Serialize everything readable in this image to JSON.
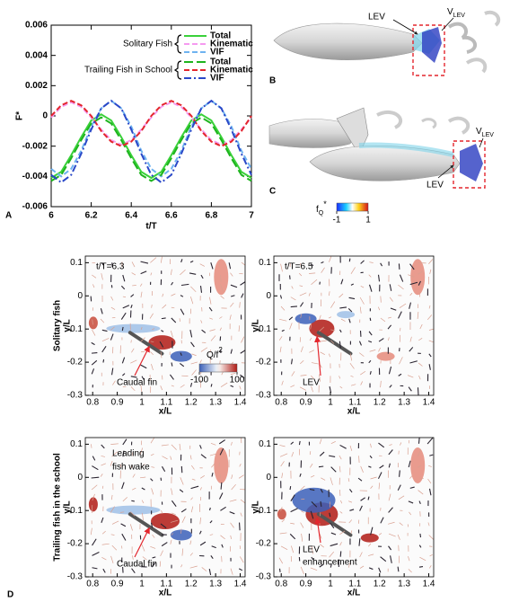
{
  "chart_data": {
    "type": "line",
    "xlabel": "t/T",
    "ylabel": "F*",
    "x": [
      6,
      6.05,
      6.1,
      6.15,
      6.2,
      6.25,
      6.3,
      6.35,
      6.4,
      6.45,
      6.5,
      6.55,
      6.6,
      6.65,
      6.7,
      6.75,
      6.8,
      6.85,
      6.9,
      6.95,
      7
    ],
    "xlim": [
      6,
      7
    ],
    "xticks": [
      6,
      6.2,
      6.4,
      6.6,
      6.8,
      7
    ],
    "ylim": [
      -0.006,
      0.006
    ],
    "yticks": [
      0.006,
      0.004,
      0.002,
      0,
      -0.002,
      -0.004,
      -0.006
    ],
    "legend_groups": [
      "Solitary Fish",
      "Trailing Fish in School"
    ],
    "series": [
      {
        "name": "Total",
        "color": "#3ad13a",
        "dash": "solid",
        "values": [
          -0.0041,
          -0.0037,
          -0.0026,
          -0.0014,
          -0.0003,
          0.0001,
          -0.0003,
          -0.0014,
          -0.0026,
          -0.0037,
          -0.0041,
          -0.0037,
          -0.0026,
          -0.0014,
          -0.0003,
          0.0001,
          -0.0003,
          -0.0014,
          -0.0026,
          -0.0037,
          -0.0041
        ]
      },
      {
        "name": "Kinematic",
        "color": "#f59af0",
        "dash": "dashed",
        "values": [
          -0.0001,
          0.0006,
          0.0009,
          0.0006,
          -0.0001,
          -0.0009,
          -0.0016,
          -0.0019,
          -0.0016,
          -0.0009,
          -0.0001,
          0.0006,
          0.0009,
          0.0006,
          -0.0001,
          -0.0009,
          -0.0016,
          -0.0019,
          -0.0016,
          -0.0009,
          -0.0001
        ]
      },
      {
        "name": "VIF",
        "color": "#6fb3f0",
        "dash": "dashed",
        "values": [
          -0.0035,
          -0.004,
          -0.0035,
          -0.0023,
          -0.0007,
          0.0005,
          0.001,
          0.0005,
          -0.0007,
          -0.0023,
          -0.0035,
          -0.004,
          -0.0035,
          -0.0023,
          -0.0007,
          0.0005,
          0.001,
          0.0005,
          -0.0007,
          -0.0023,
          -0.0035
        ]
      },
      {
        "name": "Total",
        "color": "#1eb41e",
        "dash": "longdash",
        "values": [
          -0.0043,
          -0.0039,
          -0.0028,
          -0.0016,
          -0.0005,
          -0.0001,
          -0.0005,
          -0.0016,
          -0.0028,
          -0.0039,
          -0.0043,
          -0.0039,
          -0.0028,
          -0.0016,
          -0.0005,
          -0.0001,
          -0.0005,
          -0.0016,
          -0.0028,
          -0.0039,
          -0.0043
        ]
      },
      {
        "name": "Kinematic",
        "color": "#e3262d",
        "dash": "dashed",
        "values": [
          0,
          0.0007,
          0.001,
          0.0007,
          0,
          -0.001,
          -0.0017,
          -0.002,
          -0.0017,
          -0.001,
          0,
          0.0007,
          0.001,
          0.0007,
          0,
          -0.001,
          -0.0017,
          -0.002,
          -0.0017,
          -0.001,
          0
        ]
      },
      {
        "name": "VIF",
        "color": "#2a48c8",
        "dash": "dashdot",
        "values": [
          -0.0039,
          -0.0044,
          -0.0039,
          -0.0025,
          -0.0009,
          0.0005,
          0.001,
          0.0005,
          -0.0009,
          -0.0025,
          -0.0039,
          -0.0044,
          -0.0039,
          -0.0025,
          -0.0009,
          0.0005,
          0.001,
          0.0005,
          -0.0009,
          -0.0025,
          -0.0039
        ]
      }
    ]
  },
  "panel_labels": [
    "A",
    "B",
    "C",
    "D"
  ],
  "vortex": {
    "lev": "LEV",
    "v": "V",
    "v_sub": "LEV"
  },
  "fq_colorbar": {
    "symbol": "f",
    "sub": "Q",
    "sup": "*",
    "ticks": [
      -1,
      1
    ]
  },
  "flow": {
    "xlabel": "x/L",
    "ylabel": "y/L",
    "xlim": [
      0.77,
      1.42
    ],
    "xticks": [
      0.8,
      0.9,
      1,
      1.1,
      1.2,
      1.3,
      1.4
    ],
    "ylim": [
      -0.3,
      0.12
    ],
    "yticks": [
      0.1,
      0,
      -0.1,
      -0.2,
      -0.3
    ],
    "row_labels": [
      "Solitary fish",
      "Trailing fish in the school"
    ],
    "colorbar": {
      "label": "Q/f",
      "sup": "2",
      "ticks": [
        -100,
        100
      ]
    },
    "panels": [
      {
        "time": "t/T=6.3",
        "annotation": [
          "Caudal fin"
        ]
      },
      {
        "time": "t/T=6.5",
        "annotation": [
          "LEV"
        ]
      },
      {
        "note": [
          "Leading",
          "fish wake"
        ],
        "annotation": [
          "Caudal fin"
        ]
      },
      {
        "annotation": [
          "LEV",
          "enhancement"
        ]
      }
    ]
  }
}
